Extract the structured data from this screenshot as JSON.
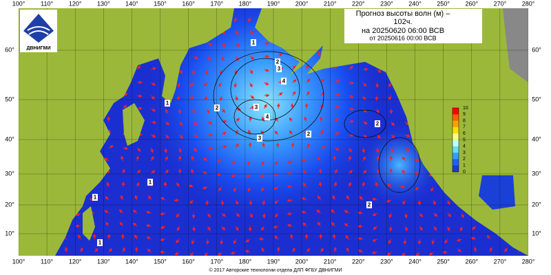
{
  "header": {
    "title_lines": [
      "Прогноз высоты волн (м) –",
      "102ч.",
      "на 20250620 06:00 ВСВ",
      "от 20250616 00:00 ВСВ"
    ]
  },
  "logo": {
    "text": "ДВНИГМИ"
  },
  "map": {
    "lon_labels": [
      "100°",
      "110°",
      "120°",
      "130°",
      "140°",
      "150°",
      "160°",
      "170°",
      "180°",
      "190°",
      "200°",
      "210°",
      "220°",
      "230°",
      "240°",
      "250°",
      "260°",
      "270°",
      "280°"
    ],
    "lat_labels": [
      "60°",
      "50°",
      "40°",
      "30°",
      "20°",
      "10°"
    ],
    "contour_labels": [
      "1",
      "2",
      "3",
      "4",
      "4",
      "3",
      "3",
      "2",
      "2",
      "1",
      "1",
      "1",
      "2",
      "1",
      "2"
    ]
  },
  "colorbar": {
    "labels": [
      "10",
      "9",
      "8",
      "7",
      "6",
      "5",
      "4",
      "3",
      "2",
      "1",
      "0"
    ]
  },
  "footer": {
    "text": "© 2017 Авторские технологии отдела ДЛП ФГБУ ДВНИГМИ"
  }
}
